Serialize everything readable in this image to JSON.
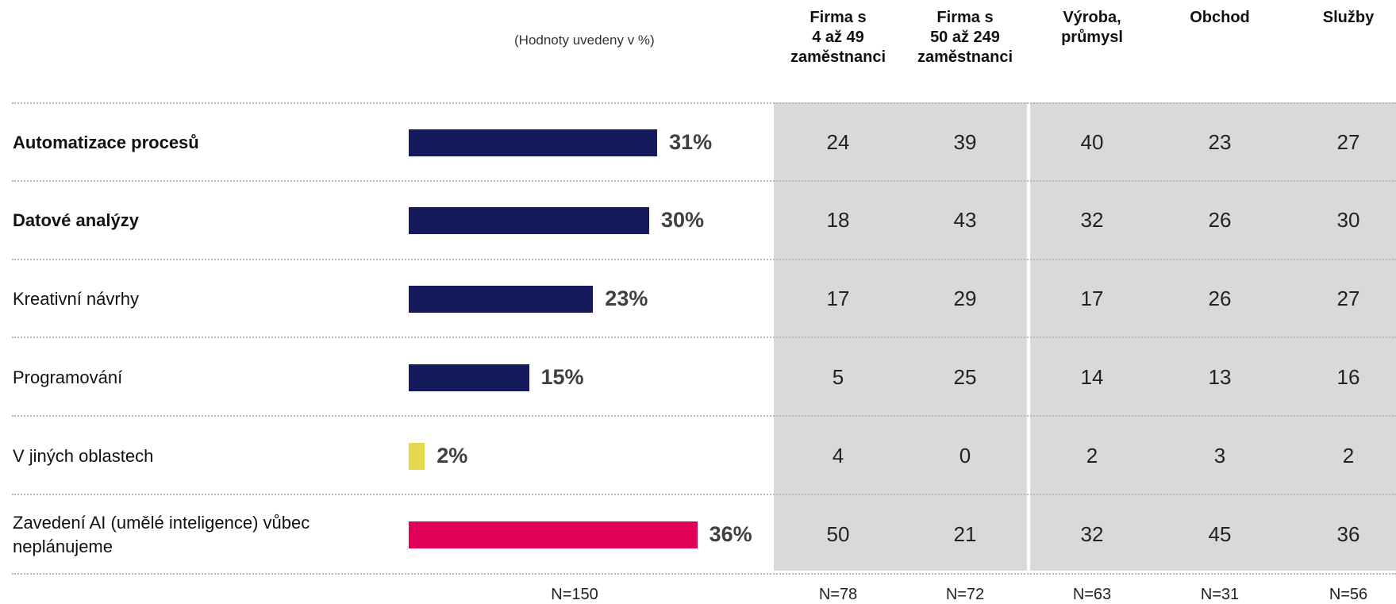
{
  "units_note": "(Hodnoty uvedeny v %)",
  "column_headers": [
    "Firma s\n4 až 49\nzaměstnanci",
    "Firma s\n50 až 249\nzaměstnanci",
    "Výroba,\nprůmysl",
    "Obchod",
    "Služby"
  ],
  "sample_sizes": {
    "total": "N=150",
    "columns": [
      "N=78",
      "N=72",
      "N=63",
      "N=31",
      "N=56"
    ]
  },
  "colors": {
    "bar_navy": "#141a5c",
    "bar_yellow": "#e2d94f",
    "bar_magenta": "#e30058",
    "panel_gray": "#d9d9d9"
  },
  "chart_data": {
    "type": "bar",
    "orientation": "horizontal",
    "categories": [
      "Automatizace procesů",
      "Datové analýzy",
      "Kreativní návrhy",
      "Programování",
      "V jiných oblastech",
      "Zavedení AI (umělé inteligence) vůbec neplánujeme"
    ],
    "values": [
      31,
      30,
      23,
      15,
      2,
      36
    ],
    "value_labels": [
      "31%",
      "30%",
      "23%",
      "15%",
      "2%",
      "36%"
    ],
    "bar_colors": [
      "navy",
      "navy",
      "navy",
      "navy",
      "yellow",
      "magenta"
    ],
    "bold_categories": [
      true,
      true,
      false,
      false,
      false,
      false
    ]
  },
  "breakdown_table": {
    "rows": [
      [
        "24",
        "39",
        "40",
        "23",
        "27"
      ],
      [
        "18",
        "43",
        "32",
        "26",
        "30"
      ],
      [
        "17",
        "29",
        "17",
        "26",
        "27"
      ],
      [
        "5",
        "25",
        "14",
        "13",
        "16"
      ],
      [
        "4",
        "0",
        "2",
        "3",
        "2"
      ],
      [
        "50",
        "21",
        "32",
        "45",
        "36"
      ]
    ]
  }
}
